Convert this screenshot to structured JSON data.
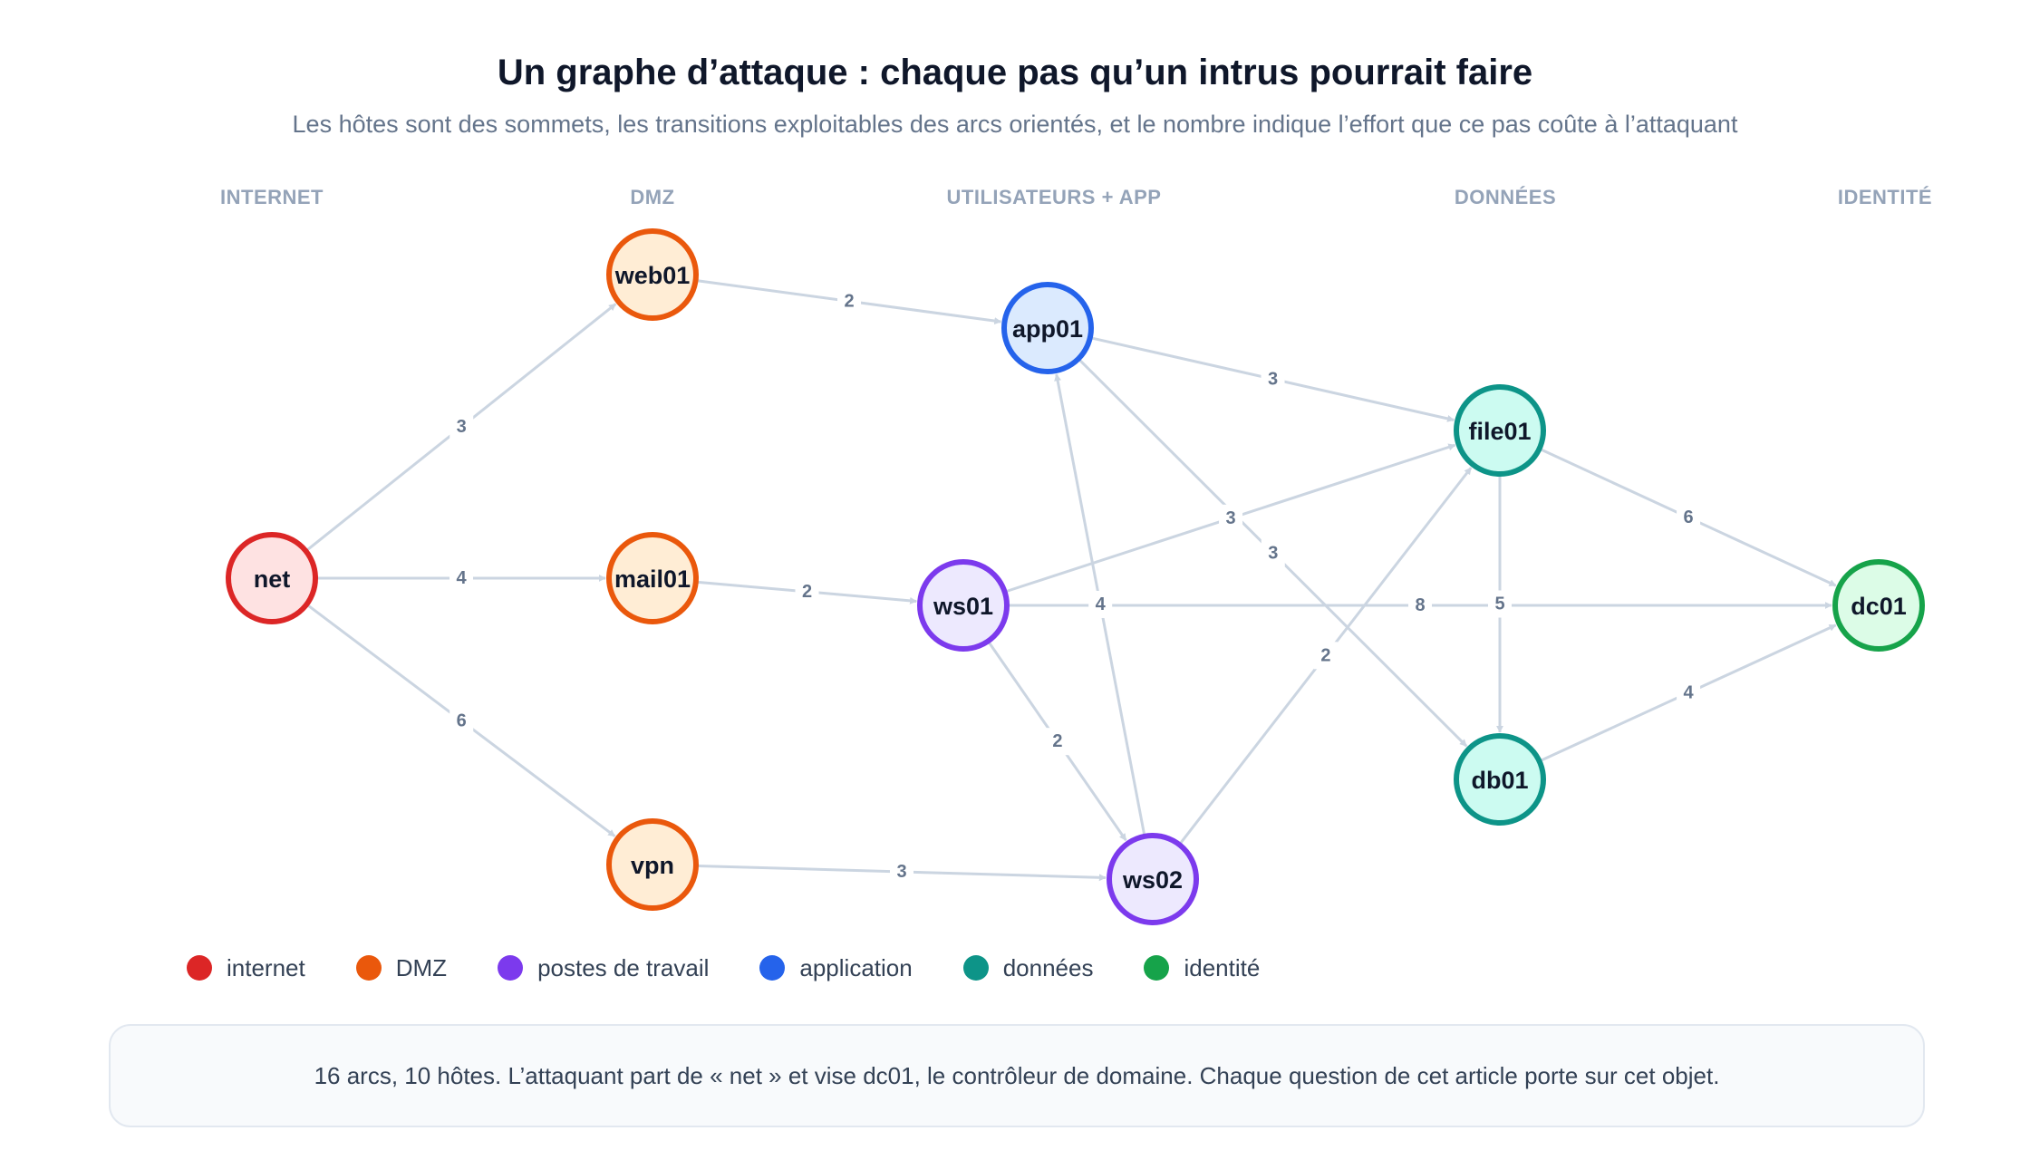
{
  "title": "Un graphe d’attaque : chaque pas qu’un intrus pourrait faire",
  "subtitle": "Les hôtes sont des sommets, les transitions exploitables des arcs orientés, et le nombre indique l’effort que ce pas coûte à l’attaquant",
  "columns": {
    "internet": "INTERNET",
    "dmz": "DMZ",
    "users_app": "UTILISATEURS + APP",
    "data": "DONNÉES",
    "identity": "IDENTITÉ"
  },
  "groups": {
    "internet": {
      "stroke": "#dc2626",
      "fill": "#fee2e2"
    },
    "dmz": {
      "stroke": "#ea580c",
      "fill": "#ffedd5"
    },
    "workstation": {
      "stroke": "#7c3aed",
      "fill": "#ede9fe"
    },
    "application": {
      "stroke": "#2563eb",
      "fill": "#dbeafe"
    },
    "data": {
      "stroke": "#0d9488",
      "fill": "#ccfbf1"
    },
    "identity": {
      "stroke": "#16a34a",
      "fill": "#dcfce7"
    }
  },
  "nodes": [
    {
      "id": "net",
      "label": "net",
      "group": "internet"
    },
    {
      "id": "web01",
      "label": "web01",
      "group": "dmz"
    },
    {
      "id": "mail01",
      "label": "mail01",
      "group": "dmz"
    },
    {
      "id": "vpn",
      "label": "vpn",
      "group": "dmz"
    },
    {
      "id": "app01",
      "label": "app01",
      "group": "application"
    },
    {
      "id": "ws01",
      "label": "ws01",
      "group": "workstation"
    },
    {
      "id": "ws02",
      "label": "ws02",
      "group": "workstation"
    },
    {
      "id": "file01",
      "label": "file01",
      "group": "data"
    },
    {
      "id": "db01",
      "label": "db01",
      "group": "data"
    },
    {
      "id": "dc01",
      "label": "dc01",
      "group": "identity"
    }
  ],
  "edges": [
    {
      "from": "net",
      "to": "web01",
      "weight": "3"
    },
    {
      "from": "net",
      "to": "mail01",
      "weight": "4"
    },
    {
      "from": "net",
      "to": "vpn",
      "weight": "6"
    },
    {
      "from": "web01",
      "to": "app01",
      "weight": "2"
    },
    {
      "from": "mail01",
      "to": "ws01",
      "weight": "2"
    },
    {
      "from": "vpn",
      "to": "ws02",
      "weight": "3"
    },
    {
      "from": "app01",
      "to": "file01",
      "weight": "3"
    },
    {
      "from": "app01",
      "to": "db01",
      "weight": "3"
    },
    {
      "from": "ws01",
      "to": "file01",
      "weight": "3"
    },
    {
      "from": "ws01",
      "to": "dc01",
      "weight": "8"
    },
    {
      "from": "ws01",
      "to": "ws02",
      "weight": "2"
    },
    {
      "from": "ws02",
      "to": "app01",
      "weight": "4"
    },
    {
      "from": "ws02",
      "to": "file01",
      "weight": "2"
    },
    {
      "from": "file01",
      "to": "dc01",
      "weight": "6"
    },
    {
      "from": "file01",
      "to": "db01",
      "weight": "5"
    },
    {
      "from": "db01",
      "to": "dc01",
      "weight": "4"
    }
  ],
  "legend": [
    {
      "label": "internet",
      "color": "#dc2626"
    },
    {
      "label": "DMZ",
      "color": "#ea580c"
    },
    {
      "label": "postes de travail",
      "color": "#7c3aed"
    },
    {
      "label": "application",
      "color": "#2563eb"
    },
    {
      "label": "données",
      "color": "#0d9488"
    },
    {
      "label": "identité",
      "color": "#16a34a"
    }
  ],
  "footer": "16 arcs, 10 hôtes. L’attaquant part de « net » et vise dc01, le contrôleur de domaine. Chaque question de cet article porte sur cet objet."
}
